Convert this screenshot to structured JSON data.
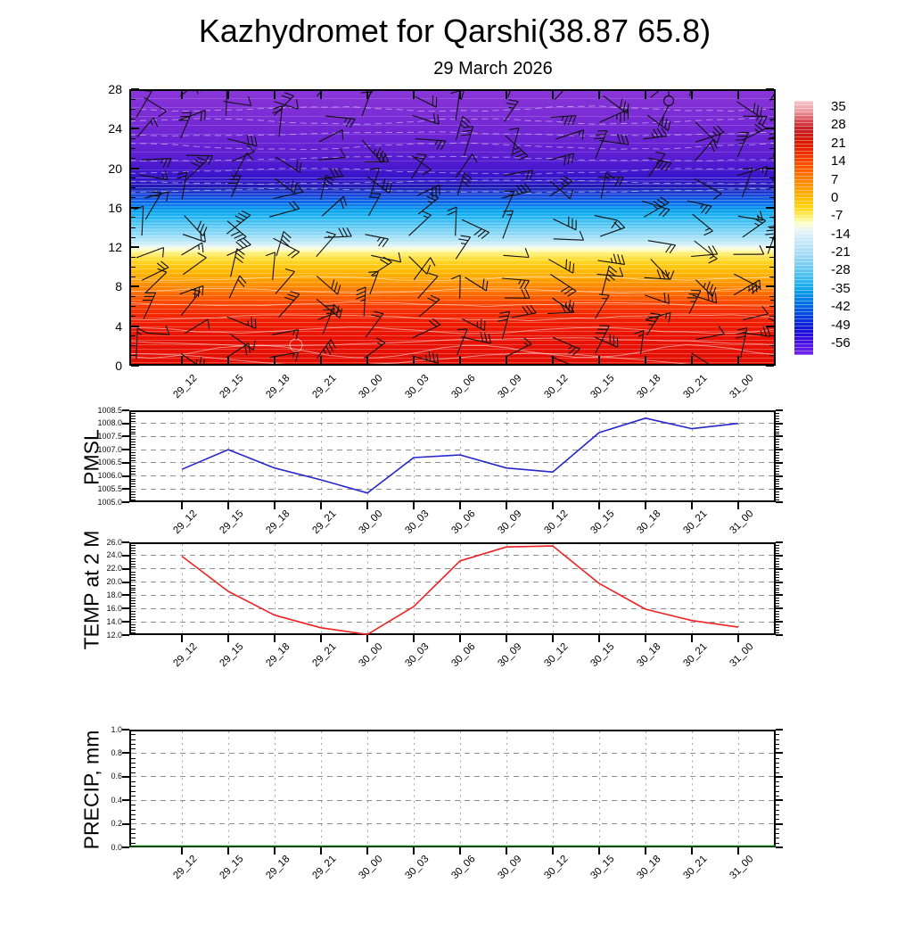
{
  "title": "Kazhydromet for Qarshi(38.87 65.8)",
  "subtitle": "29 March 2026",
  "time_labels": [
    "29_12",
    "29_15",
    "29_18",
    "29_21",
    "30_00",
    "30_03",
    "30_06",
    "30_09",
    "30_12",
    "30_15",
    "30_18",
    "30_21",
    "31_00"
  ],
  "colorbar": {
    "labels": [
      "35",
      "28",
      "21",
      "14",
      "7",
      "0",
      "-7",
      "-14",
      "-21",
      "-28",
      "-35",
      "-42",
      "-49",
      "-56"
    ],
    "gradient": [
      [
        "0%",
        "#f6c6cc"
      ],
      [
        "4%",
        "#ec9aa2"
      ],
      [
        "8%",
        "#d84850"
      ],
      [
        "11%",
        "#c62026"
      ],
      [
        "14%",
        "#cd1a10"
      ],
      [
        "18%",
        "#e11c00"
      ],
      [
        "22%",
        "#f13a00"
      ],
      [
        "26%",
        "#fb5800"
      ],
      [
        "30%",
        "#ff7800"
      ],
      [
        "34%",
        "#ff9800"
      ],
      [
        "38%",
        "#ffb800"
      ],
      [
        "42%",
        "#ffd610"
      ],
      [
        "45.5%",
        "#ffee6a"
      ],
      [
        "48%",
        "#fdffc4"
      ],
      [
        "51%",
        "#e8f5f6"
      ],
      [
        "55%",
        "#c9e9f8"
      ],
      [
        "60%",
        "#a6dcf6"
      ],
      [
        "65%",
        "#74ccf3"
      ],
      [
        "70%",
        "#3cbaf0"
      ],
      [
        "74%",
        "#0ba6ee"
      ],
      [
        "78%",
        "#0380e8"
      ],
      [
        "82%",
        "#055ce2"
      ],
      [
        "86%",
        "#0834dc"
      ],
      [
        "90%",
        "#1512d8"
      ],
      [
        "94%",
        "#3a0ee0"
      ],
      [
        "100%",
        "#7622ec"
      ]
    ]
  },
  "main_chart": {
    "yticks": [
      0,
      4,
      8,
      12,
      16,
      20,
      24,
      28
    ],
    "ymin": 0,
    "ymax": 28,
    "barb_color": "#101010",
    "contour_color": "#ffffff",
    "barb_seed": 20260329,
    "gradient": [
      [
        "0%",
        "#8a36d8"
      ],
      [
        "8%",
        "#7e2ed6"
      ],
      [
        "16%",
        "#7026d4"
      ],
      [
        "24%",
        "#5c1ed2"
      ],
      [
        "29%",
        "#4718ce"
      ],
      [
        "33%",
        "#2e12c8"
      ],
      [
        "35.5%",
        "#1f1bb4"
      ],
      [
        "38%",
        "#163fd8"
      ],
      [
        "41%",
        "#0a6ae8"
      ],
      [
        "44%",
        "#01a2ee"
      ],
      [
        "47%",
        "#2fbaf2"
      ],
      [
        "50%",
        "#64ccf4"
      ],
      [
        "53%",
        "#97dcf6"
      ],
      [
        "55.5%",
        "#c3eaf8"
      ],
      [
        "57%",
        "#eef8f0"
      ],
      [
        "58%",
        "#fdfdc9"
      ],
      [
        "59.5%",
        "#ffef72"
      ],
      [
        "62%",
        "#ffd829"
      ],
      [
        "65%",
        "#ffc008"
      ],
      [
        "68%",
        "#ffa800"
      ],
      [
        "71%",
        "#ff8c00"
      ],
      [
        "74%",
        "#ff6c00"
      ],
      [
        "77%",
        "#fb4a00"
      ],
      [
        "80%",
        "#f63000"
      ],
      [
        "84%",
        "#ef1d02"
      ],
      [
        "90%",
        "#e91205"
      ],
      [
        "100%",
        "#e20e02"
      ]
    ]
  },
  "chart_data": [
    {
      "id": "cross_section",
      "type": "heatmap",
      "title": "Kazhydromet for Qarshi(38.87 65.8)",
      "subtitle": "29 March 2026",
      "x": [
        "29_12",
        "29_15",
        "29_18",
        "29_21",
        "30_00",
        "30_03",
        "30_06",
        "30_09",
        "30_12",
        "30_15",
        "30_18",
        "30_21",
        "31_00"
      ],
      "ylim": [
        0,
        28
      ],
      "yticks": [
        0,
        4,
        8,
        12,
        16,
        20,
        24,
        28
      ],
      "colorbar_ticks": [
        "35",
        "28",
        "21",
        "14",
        "7",
        "0",
        "-7",
        "-14",
        "-21",
        "-28",
        "-35",
        "-42",
        "-49",
        "-56"
      ],
      "legend_position": "right",
      "description": "Vertical temperature cross-section with wind barbs; warm (red, >14) near surface 0-8, orange/yellow 8-12, 0 to -14 (pale) near 12, blues -14 to -35 at 13-17, dark blue -42 near 18, purple -49 to -56 above 19"
    },
    {
      "id": "pmsl",
      "type": "line",
      "name": "PMSL",
      "x": [
        "29_12",
        "29_15",
        "29_18",
        "29_21",
        "30_00",
        "30_03",
        "30_06",
        "30_09",
        "30_12",
        "30_15",
        "30_18",
        "30_21",
        "31_00"
      ],
      "values": [
        1006.25,
        1007.0,
        1006.3,
        1005.85,
        1005.35,
        1006.7,
        1006.8,
        1006.3,
        1006.15,
        1007.65,
        1008.2,
        1007.8,
        1008.0
      ],
      "ylim": [
        1005.0,
        1008.5
      ],
      "ytick_step": 0.5,
      "ytick_decimals": 1,
      "color": "#2626cc",
      "grid": true
    },
    {
      "id": "temp",
      "type": "line",
      "name": "TEMP at 2 M",
      "x": [
        "29_12",
        "29_15",
        "29_18",
        "29_21",
        "30_00",
        "30_03",
        "30_06",
        "30_09",
        "30_12",
        "30_15",
        "30_18",
        "30_21",
        "31_00"
      ],
      "values": [
        23.9,
        18.6,
        15.0,
        13.1,
        12.1,
        16.3,
        23.2,
        25.3,
        25.45,
        19.8,
        15.9,
        14.2,
        13.2
      ],
      "ylim": [
        12.0,
        26.0
      ],
      "ytick_step": 2.0,
      "ytick_decimals": 1,
      "color": "#ee2222",
      "grid": true
    },
    {
      "id": "precip",
      "type": "line",
      "name": "PRECIP, mm",
      "x": [
        "29_12",
        "29_15",
        "29_18",
        "29_21",
        "30_00",
        "30_03",
        "30_06",
        "30_09",
        "30_12",
        "30_15",
        "30_18",
        "30_21",
        "31_00"
      ],
      "values": [
        0.0,
        0.0,
        0.0,
        0.0,
        0.0,
        0.0,
        0.0,
        0.0,
        0.0,
        0.0,
        0.0,
        0.0,
        0.0
      ],
      "ylim": [
        0.0,
        1.0
      ],
      "ytick_step": 0.2,
      "ytick_decimals": 1,
      "color": "#007700",
      "grid": true
    }
  ]
}
